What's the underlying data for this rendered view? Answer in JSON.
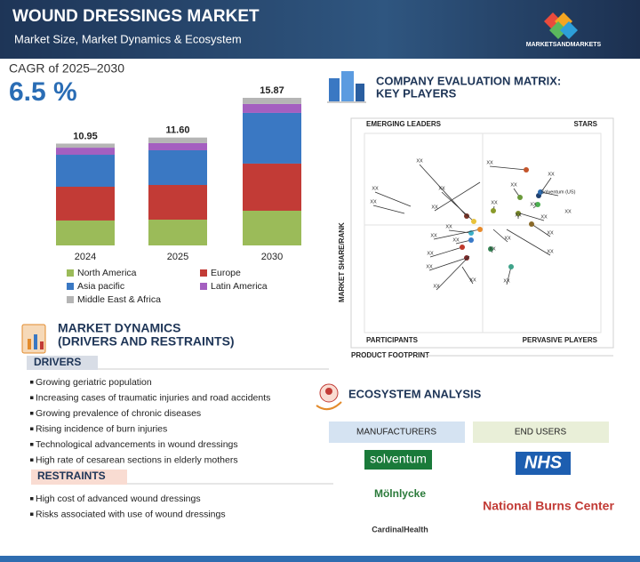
{
  "header": {
    "title": "WOUND DRESSINGS MARKET",
    "subtitle": "Market Size, Market Dynamics & Ecosystem",
    "brand": "MARKETSANDMARKETS"
  },
  "cagr": {
    "label": "CAGR of 2025–2030",
    "value": "6.5 %"
  },
  "chart_data": {
    "type": "bar",
    "stacked": true,
    "categories": [
      "2024",
      "2025",
      "2030"
    ],
    "series": [
      {
        "name": "North America",
        "color": "#9bbb59",
        "values": [
          2.68,
          2.77,
          3.73
        ]
      },
      {
        "name": "Europe",
        "color": "#c23b36",
        "values": [
          3.63,
          3.73,
          5.07
        ]
      },
      {
        "name": "Asia pacific",
        "color": "#3a78c3",
        "values": [
          3.44,
          3.73,
          5.45
        ]
      },
      {
        "name": "Latin America",
        "color": "#a45fc0",
        "values": [
          0.76,
          0.77,
          0.96
        ]
      },
      {
        "name": "Middle East & Africa",
        "color": "#b5b5b5",
        "values": [
          0.44,
          0.6,
          0.66
        ]
      }
    ],
    "total_labels": [
      "10.95",
      "11.60",
      "15.87"
    ]
  },
  "market_dynamics": {
    "title": "MARKET DYNAMICS",
    "subtitle": "(DRIVERS AND RESTRAINTS)",
    "drivers_heading": "DRIVERS",
    "drivers": [
      "Growing geriatric population",
      "Increasing cases of traumatic injuries and road accidents",
      "Growing prevalence of chronic diseases",
      "Rising incidence of burn injuries",
      "Technological advancements in wound dressings",
      "High rate of cesarean sections in elderly mothers"
    ],
    "restraints_heading": "RESTRAINTS",
    "restraints": [
      "High cost of advanced wound dressings",
      "Risks associated with use of wound dressings"
    ]
  },
  "company_matrix": {
    "title": "COMPANY EVALUATION MATRIX:",
    "title2": "KEY PLAYERS",
    "quadrants": [
      "EMERGING LEADERS",
      "STARS",
      "PARTICIPANTS",
      "PERVASIVE PLAYERS"
    ],
    "y_label": "MARKET SHARE/RANK",
    "x_label": "PRODUCT FOOTPRINT",
    "point_labels": [
      "XX",
      "XX",
      "XX",
      "XX",
      "Solventum (US)",
      "XX",
      "XX",
      "XX",
      "XX",
      "XX",
      "XX",
      "XX",
      "XX",
      "XX",
      "XX",
      "XX",
      "XX",
      "XX",
      "XX",
      "XX",
      "XX",
      "XX",
      "XX",
      "XX",
      "XX",
      "XX"
    ]
  },
  "ecosystem": {
    "title": "ECOSYSTEM ANALYSIS",
    "columns": [
      {
        "title": "MANUFACTURERS",
        "items": [
          "solventum",
          "Mölnlycke",
          "CardinalHealth"
        ]
      },
      {
        "title": "END USERS",
        "items": [
          "NHS",
          "National Burns Center"
        ]
      }
    ]
  }
}
